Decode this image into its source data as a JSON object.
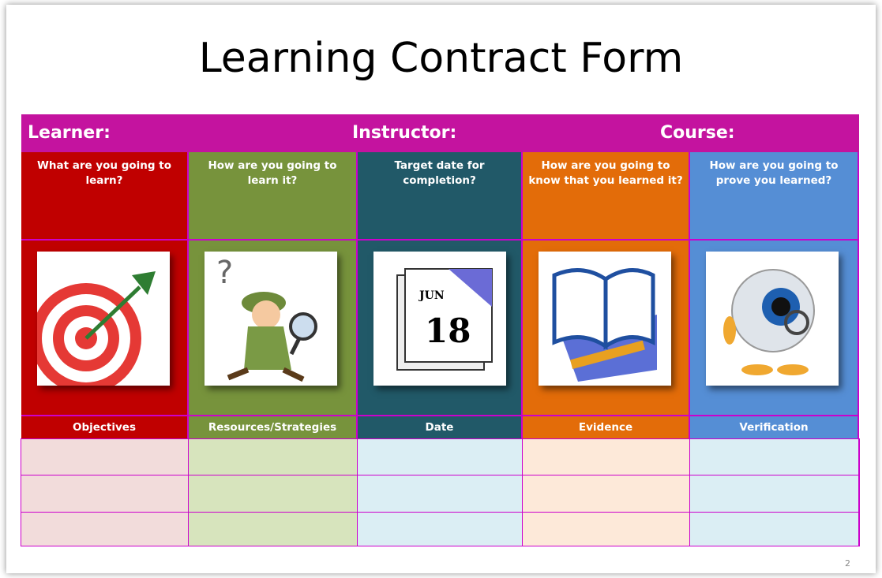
{
  "header": {
    "title": "Learning Contract Form"
  },
  "table": {
    "header_row": [
      "Learner:",
      "Instructor:",
      "Course:"
    ],
    "questions": [
      "What are you going to learn?",
      "How are you going to learn it?",
      "Target date for completion?",
      "How are you going to know that you learned it?",
      "How are you going to prove you learned?"
    ],
    "labels": [
      "Objectives",
      "Resources/Strategies",
      "Date",
      "Evidence",
      "Verification"
    ]
  },
  "page_number": "2"
}
